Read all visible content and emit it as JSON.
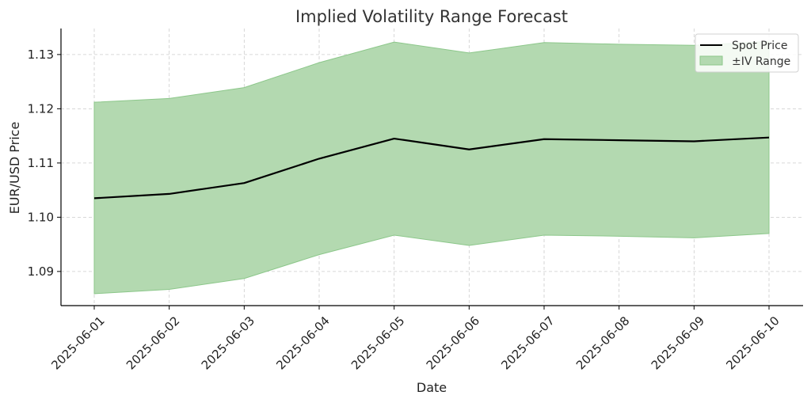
{
  "chart_data": {
    "type": "line",
    "title": "Implied Volatility Range Forecast",
    "xlabel": "Date",
    "ylabel": "EUR/USD Price",
    "x": [
      "2025-06-01",
      "2025-06-02",
      "2025-06-03",
      "2025-06-04",
      "2025-06-05",
      "2025-06-06",
      "2025-06-07",
      "2025-06-08",
      "2025-06-09",
      "2025-06-10"
    ],
    "series": [
      {
        "name": "Spot Price",
        "values": [
          1.1035,
          1.1043,
          1.1063,
          1.1108,
          1.1145,
          1.1125,
          1.1144,
          1.1142,
          1.114,
          1.1147
        ]
      }
    ],
    "band": {
      "name": "±IV Range",
      "upper": [
        1.1212,
        1.1219,
        1.1239,
        1.1285,
        1.1323,
        1.1303,
        1.1322,
        1.1319,
        1.1317,
        1.1324
      ],
      "lower": [
        1.0859,
        1.0867,
        1.0887,
        1.0931,
        1.0967,
        1.0948,
        1.0967,
        1.0965,
        1.0962,
        1.097
      ]
    },
    "yticks": [
      "1.09",
      "1.10",
      "1.11",
      "1.12",
      "1.13"
    ],
    "ylim": [
      1.0837,
      1.1348
    ],
    "grid": true,
    "legend": "top-right",
    "colors": {
      "line": "#000000",
      "band_fill": "#b3d9b0",
      "band_edge": "#8cc78a",
      "grid": "#cccccc",
      "axis": "#000000"
    }
  }
}
